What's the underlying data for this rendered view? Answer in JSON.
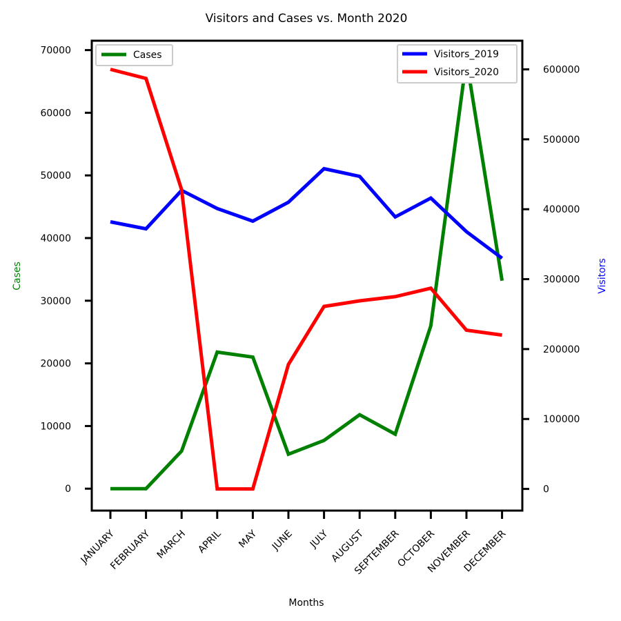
{
  "chart_data": {
    "type": "line",
    "title": "Visitors and Cases vs. Month 2020",
    "xlabel": "Months",
    "ylabel_left": "Cases",
    "ylabel_right": "Visitors",
    "categories": [
      "JANUARY",
      "FEBRUARY",
      "MARCH",
      "APRIL",
      "MAY",
      "JUNE",
      "JULY",
      "AUGUST",
      "SEPTEMBER",
      "OCTOBER",
      "NOVEMBER",
      "DECEMBER"
    ],
    "left_axis": {
      "ylim": [
        -3500,
        71500
      ],
      "ticks": [
        0,
        10000,
        20000,
        30000,
        40000,
        50000,
        60000,
        70000
      ],
      "color": "#008000"
    },
    "right_axis": {
      "ylim": [
        -31000,
        641000
      ],
      "ticks": [
        0,
        100000,
        200000,
        300000,
        400000,
        500000,
        600000
      ],
      "color": "#0000ff"
    },
    "series": [
      {
        "name": "Cases",
        "axis": "left",
        "color": "#008000",
        "values": [
          0,
          0,
          6000,
          21800,
          21000,
          5500,
          7700,
          11800,
          8700,
          26000,
          68500,
          33200
        ]
      },
      {
        "name": "Visitors_2019",
        "axis": "right",
        "color": "#0000ff",
        "values": [
          382000,
          372000,
          427000,
          401000,
          383000,
          410000,
          458000,
          447000,
          389000,
          416000,
          368000,
          330000
        ]
      },
      {
        "name": "Visitors_2020",
        "axis": "right",
        "color": "#ff0000",
        "values": [
          600000,
          587000,
          428000,
          0,
          0,
          178000,
          261000,
          269000,
          275000,
          287000,
          227000,
          220000
        ]
      }
    ],
    "legends": {
      "left": [
        "Cases"
      ],
      "right": [
        "Visitors_2019",
        "Visitors_2020"
      ]
    },
    "legend_placement": {
      "left": "upper-left",
      "right": "upper-right"
    },
    "grid": false
  }
}
